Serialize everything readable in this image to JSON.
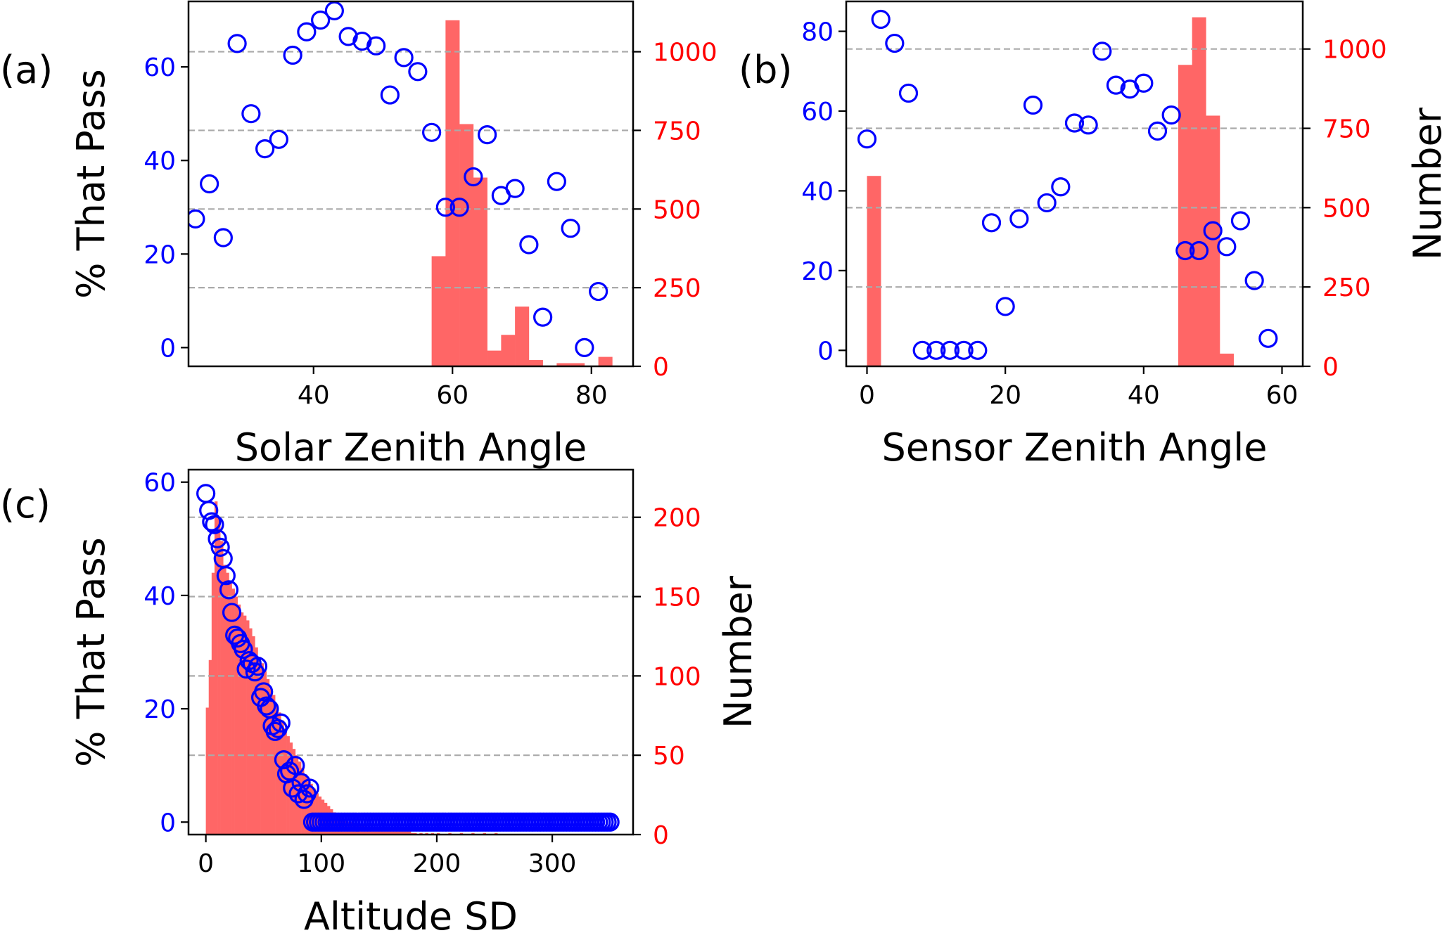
{
  "colors": {
    "left_axis": "#0000ff",
    "right_axis": "#ff0000",
    "bars": "#ff6666",
    "markers": "#0000ff",
    "grid": "#aaaaaa",
    "frame": "#000000"
  },
  "chart_data": [
    {
      "panel_label": "(a)",
      "type": "scatter+histogram",
      "xlabel": "Solar Zenith Angle",
      "ylabel_left": "% That Pass",
      "ylabel_right": "",
      "xlim": [
        22,
        86
      ],
      "ylim_left": [
        -4,
        74
      ],
      "ylim_right": [
        0,
        1160
      ],
      "xticks": [
        40,
        60,
        80
      ],
      "yticks_left": [
        0,
        20,
        40,
        60
      ],
      "yticks_right": [
        0,
        250,
        500,
        750,
        1000
      ],
      "grid": "horizontal dashed at right-axis ticks",
      "bin_width": 2,
      "histogram": {
        "bin_starts": [
          57,
          59,
          61,
          63,
          65,
          67,
          69,
          71,
          73,
          75,
          77,
          79,
          81
        ],
        "counts": [
          350,
          1100,
          770,
          600,
          50,
          100,
          190,
          20,
          0,
          10,
          10,
          0,
          30
        ]
      },
      "series": [
        {
          "x": [
            23,
            25,
            27,
            29,
            31,
            33,
            35,
            37,
            39,
            41,
            43,
            45,
            47,
            49,
            51,
            53,
            55,
            57,
            59,
            61,
            63,
            65,
            67,
            69,
            71,
            73,
            75,
            77,
            79,
            81
          ],
          "y": [
            27.5,
            35,
            23.5,
            65,
            50,
            42.5,
            44.5,
            62.5,
            67.5,
            70,
            72,
            66.5,
            65.5,
            64.5,
            54,
            62,
            59,
            46,
            30,
            30,
            36.5,
            45.5,
            32.5,
            34,
            22,
            6.5,
            35.5,
            25.5,
            0,
            12
          ]
        }
      ]
    },
    {
      "panel_label": "(b)",
      "type": "scatter+histogram",
      "xlabel": "Sensor Zenith Angle",
      "ylabel_left": "",
      "ylabel_right": "Number",
      "xlim": [
        -3,
        63
      ],
      "ylim_left": [
        -4,
        87.5
      ],
      "ylim_right": [
        0,
        1150
      ],
      "xticks": [
        0,
        20,
        40,
        60
      ],
      "yticks_left": [
        0,
        20,
        40,
        60,
        80
      ],
      "yticks_right": [
        0,
        250,
        500,
        750,
        1000
      ],
      "grid": "horizontal dashed at right-axis ticks",
      "bin_width": 2,
      "histogram": {
        "bin_starts": [
          0,
          45,
          47,
          49,
          51
        ],
        "counts": [
          600,
          950,
          1100,
          790,
          40
        ]
      },
      "series": [
        {
          "x": [
            0,
            2,
            4,
            6,
            8,
            10,
            12,
            14,
            16,
            18,
            20,
            22,
            24,
            26,
            28,
            30,
            32,
            34,
            36,
            38,
            40,
            42,
            44,
            46,
            48,
            50,
            52,
            54,
            56,
            58
          ],
          "y": [
            53,
            83,
            77,
            64.5,
            0,
            0,
            0,
            0,
            0,
            32,
            11,
            33,
            61.5,
            37,
            41,
            57,
            56.5,
            75,
            66.5,
            65.5,
            67,
            55,
            59,
            25,
            25,
            30,
            26,
            32.5,
            17.5,
            3
          ]
        }
      ]
    },
    {
      "panel_label": "(c)",
      "type": "scatter+histogram",
      "xlabel": "Altitude SD",
      "ylabel_left": "% That Pass",
      "ylabel_right": "Number",
      "xlim": [
        -15,
        370
      ],
      "ylim_left": [
        -2.2,
        62.2
      ],
      "ylim_right": [
        0,
        230
      ],
      "xticks": [
        0,
        100,
        200,
        300
      ],
      "yticks_left": [
        0,
        20,
        40,
        60
      ],
      "yticks_right": [
        0,
        50,
        100,
        150,
        200
      ],
      "grid": "horizontal dashed at right-axis ticks",
      "bin_width": 2.5,
      "histogram": {
        "bin_starts": [
          0,
          2.5,
          5,
          7.5,
          10,
          12.5,
          15,
          17.5,
          20,
          22.5,
          25,
          27.5,
          30,
          32.5,
          35,
          37.5,
          40,
          42.5,
          45,
          47.5,
          50,
          52.5,
          55,
          57.5,
          60,
          62.5,
          65,
          67.5,
          70,
          72.5,
          75,
          77.5,
          80,
          82.5,
          85,
          87.5,
          90,
          92.5,
          95,
          97.5,
          100,
          102.5,
          105,
          107.5,
          110,
          112.5,
          115,
          117.5,
          120,
          122.5,
          125,
          127.5,
          130,
          132.5,
          135,
          137.5,
          140,
          142.5,
          145,
          147.5,
          150,
          152.5,
          155,
          157.5,
          160,
          162.5,
          165,
          167.5,
          170,
          172.5,
          175,
          177.5,
          180,
          185,
          190,
          195,
          200,
          210,
          220,
          230,
          240,
          250
        ],
        "counts": [
          80,
          110,
          165,
          210,
          200,
          185,
          170,
          165,
          160,
          155,
          150,
          145,
          140,
          138,
          135,
          130,
          125,
          118,
          112,
          108,
          103,
          98,
          92,
          88,
          82,
          77,
          72,
          67,
          62,
          58,
          54,
          50,
          46,
          42,
          38,
          35,
          32,
          29,
          26,
          24,
          22,
          20,
          18,
          16,
          14,
          12,
          11,
          10,
          9,
          8,
          8,
          7,
          7,
          6,
          6,
          5,
          5,
          5,
          4,
          4,
          4,
          3,
          3,
          3,
          3,
          2,
          2,
          2,
          2,
          2,
          2,
          1,
          1,
          1,
          1,
          1,
          1,
          1,
          1,
          1,
          1,
          1
        ]
      },
      "series": [
        {
          "x": [
            0,
            2.5,
            5,
            7.5,
            10,
            12.5,
            15,
            17.5,
            20,
            22.5,
            25,
            27.5,
            30,
            32.5,
            35,
            37.5,
            40,
            42.5,
            45,
            47.5,
            50,
            52.5,
            55,
            57.5,
            60,
            62.5,
            65,
            67.5,
            70,
            72.5,
            75,
            77.5,
            80,
            82.5,
            85,
            87.5,
            90,
            92.5,
            95,
            97.5,
            100,
            102.5,
            105,
            107.5,
            110,
            112.5,
            115,
            117.5,
            120,
            122.5,
            125,
            127.5,
            130,
            132.5,
            135,
            137.5,
            140,
            142.5,
            145,
            147.5,
            150,
            152.5,
            155,
            157.5,
            160,
            162.5,
            165,
            167.5,
            170,
            172.5,
            175,
            177.5,
            180,
            182.5,
            185,
            187.5,
            190,
            192.5,
            195,
            197.5,
            200,
            202.5,
            205,
            207.5,
            210,
            212.5,
            215,
            217.5,
            220,
            222.5,
            225,
            227.5,
            230,
            232.5,
            235,
            237.5,
            240,
            242.5,
            245,
            247.5,
            250,
            252.5,
            255,
            257.5,
            260,
            262.5,
            265,
            267.5,
            270,
            272.5,
            275,
            277.5,
            280,
            282.5,
            285,
            287.5,
            290,
            292.5,
            295,
            297.5,
            300,
            302.5,
            305,
            307.5,
            310,
            312.5,
            315,
            317.5,
            320,
            322.5,
            325,
            327.5,
            330,
            332.5,
            335,
            337.5,
            340,
            342.5,
            345,
            347.5,
            350
          ],
          "y": [
            58,
            55,
            53,
            52.5,
            50,
            48.5,
            46.5,
            43.5,
            41,
            37,
            33,
            32.5,
            31.5,
            30.5,
            27,
            28.5,
            28,
            26.5,
            27.5,
            22,
            23,
            20.5,
            20,
            17,
            16,
            16.5,
            17.5,
            11,
            8.5,
            9,
            6,
            10,
            5,
            7,
            4,
            5,
            6,
            0,
            0,
            0,
            0,
            0,
            0,
            0,
            0,
            0,
            0,
            0,
            0,
            0,
            0,
            0,
            0,
            0,
            0,
            0,
            0,
            0,
            0,
            0,
            0,
            0,
            0,
            0,
            0,
            0,
            0,
            0,
            0,
            0,
            0,
            0,
            0,
            0,
            0,
            0,
            0,
            0,
            0,
            0,
            0,
            0,
            0,
            0,
            0,
            0,
            0,
            0,
            0,
            0,
            0,
            0,
            0,
            0,
            0,
            0,
            0,
            0,
            0,
            0,
            0,
            0,
            0,
            0,
            0,
            0,
            0,
            0,
            0,
            0,
            0,
            0,
            0,
            0,
            0,
            0,
            0,
            0,
            0,
            0,
            0,
            0,
            0,
            0,
            0,
            0,
            0,
            0,
            0,
            0,
            0,
            0,
            0,
            0,
            0,
            0,
            0,
            0,
            0,
            0,
            0
          ]
        }
      ]
    }
  ]
}
